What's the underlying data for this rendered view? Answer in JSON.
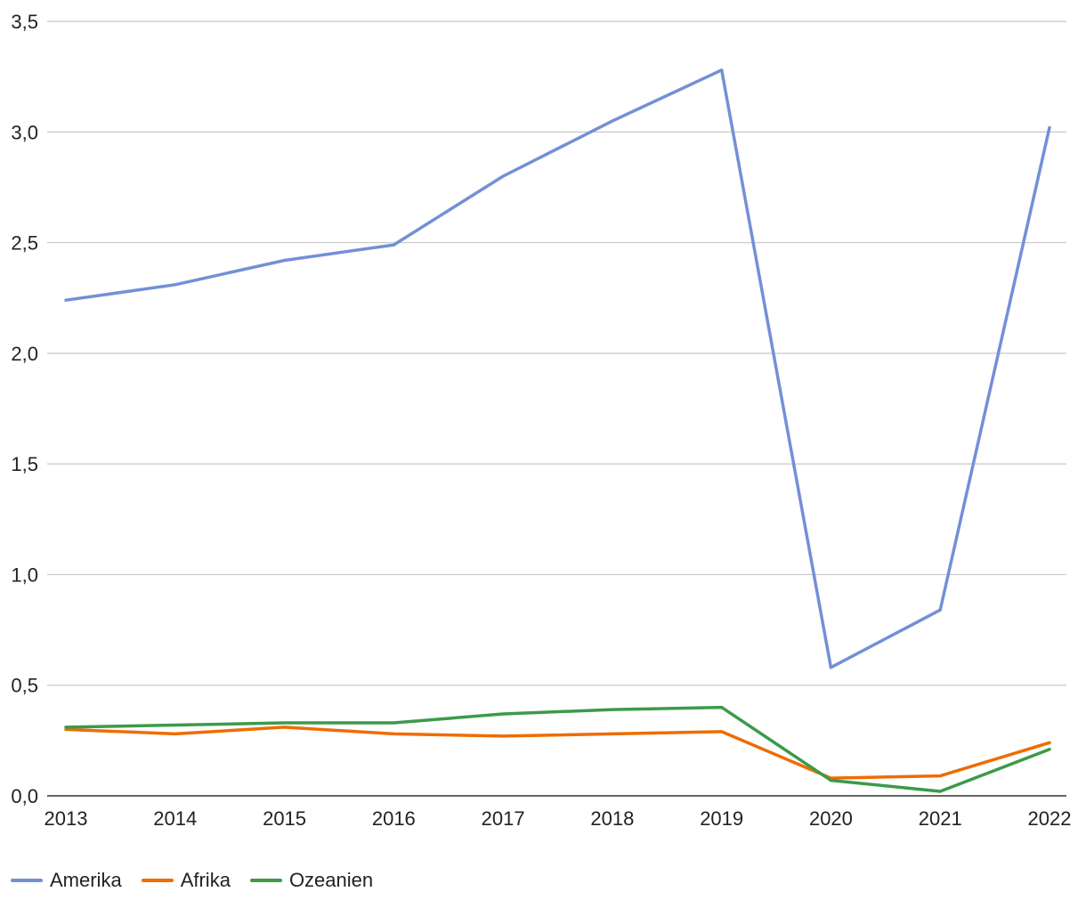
{
  "chart_data": {
    "type": "line",
    "title": "",
    "xlabel": "",
    "ylabel": "",
    "categories": [
      "2013",
      "2014",
      "2015",
      "2016",
      "2017",
      "2018",
      "2019",
      "2020",
      "2021",
      "2022"
    ],
    "ylim": [
      0,
      3.5
    ],
    "yticks": [
      "0,0",
      "0,5",
      "1,0",
      "1,5",
      "2,0",
      "2,5",
      "3,0",
      "3,5"
    ],
    "grid": true,
    "legend_position": "bottom-left",
    "series": [
      {
        "name": "Amerika",
        "color": "#7390d6",
        "values": [
          2.24,
          2.31,
          2.42,
          2.49,
          2.8,
          3.05,
          3.28,
          0.58,
          0.84,
          3.02
        ]
      },
      {
        "name": "Afrika",
        "color": "#ef6c00",
        "values": [
          0.3,
          0.28,
          0.31,
          0.28,
          0.27,
          0.28,
          0.29,
          0.08,
          0.09,
          0.24
        ]
      },
      {
        "name": "Ozeanien",
        "color": "#3c9a4a",
        "values": [
          0.31,
          0.32,
          0.33,
          0.33,
          0.37,
          0.39,
          0.4,
          0.07,
          0.02,
          0.21
        ]
      }
    ]
  }
}
